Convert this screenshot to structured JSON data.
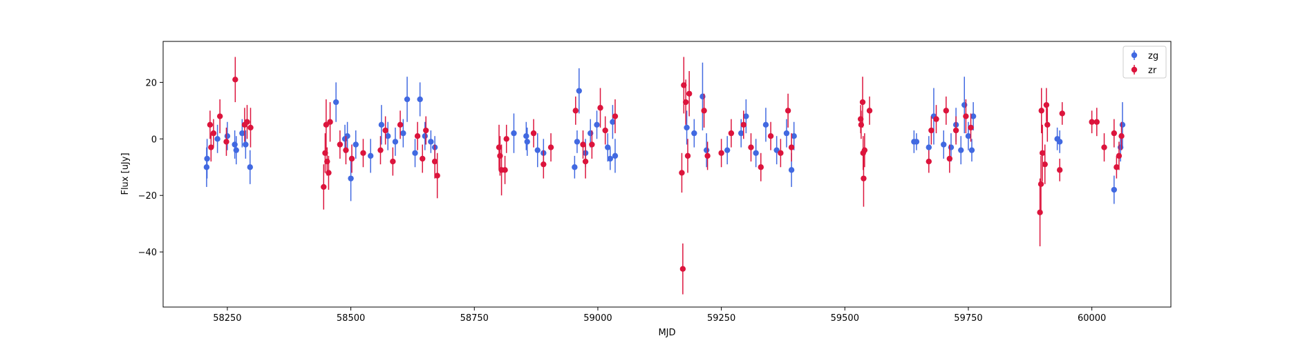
{
  "chart_data": {
    "type": "scatter",
    "title": "",
    "xlabel": "MJD",
    "ylabel": "Flux [uJy]",
    "xlim": [
      58120,
      60160
    ],
    "ylim": [
      -59.5,
      34.5
    ],
    "x_ticks": [
      58250,
      58500,
      58750,
      59000,
      59250,
      59500,
      59750,
      60000
    ],
    "x_tick_labels": [
      "58250",
      "58500",
      "58750",
      "59000",
      "59250",
      "59500",
      "59750",
      "60000"
    ],
    "y_ticks": [
      20,
      0,
      -20,
      -40
    ],
    "y_tick_labels": [
      "20",
      "0",
      "−20",
      "−40"
    ],
    "grid": false,
    "legend_position": "top-right",
    "error_bars": true,
    "series": [
      {
        "name": "zg",
        "color": "#4169e1",
        "points": [
          {
            "x": 58208,
            "y": -10,
            "err": 7
          },
          {
            "x": 58209,
            "y": -7,
            "err": 7
          },
          {
            "x": 58230,
            "y": 0,
            "err": 5
          },
          {
            "x": 58250,
            "y": 1,
            "err": 5
          },
          {
            "x": 58265,
            "y": -2,
            "err": 5
          },
          {
            "x": 58268,
            "y": -4,
            "err": 5
          },
          {
            "x": 58280,
            "y": 2,
            "err": 5
          },
          {
            "x": 58287,
            "y": -2,
            "err": 5
          },
          {
            "x": 58296,
            "y": -10,
            "err": 6
          },
          {
            "x": 58470,
            "y": 13,
            "err": 7
          },
          {
            "x": 58488,
            "y": 0,
            "err": 5
          },
          {
            "x": 58493,
            "y": 1,
            "err": 5
          },
          {
            "x": 58500,
            "y": -14,
            "err": 8
          },
          {
            "x": 58510,
            "y": -2,
            "err": 5
          },
          {
            "x": 58540,
            "y": -6,
            "err": 6
          },
          {
            "x": 58562,
            "y": 5,
            "err": 7
          },
          {
            "x": 58575,
            "y": 1,
            "err": 5
          },
          {
            "x": 58590,
            "y": -1,
            "err": 5
          },
          {
            "x": 58606,
            "y": 2,
            "err": 5
          },
          {
            "x": 58614,
            "y": 14,
            "err": 8
          },
          {
            "x": 58630,
            "y": -5,
            "err": 5
          },
          {
            "x": 58640,
            "y": 14,
            "err": 6
          },
          {
            "x": 58650,
            "y": 1,
            "err": 5
          },
          {
            "x": 58662,
            "y": -1,
            "err": 4
          },
          {
            "x": 58670,
            "y": -3,
            "err": 4
          },
          {
            "x": 58830,
            "y": 2,
            "err": 7
          },
          {
            "x": 58855,
            "y": 1,
            "err": 5
          },
          {
            "x": 58857,
            "y": -1,
            "err": 5
          },
          {
            "x": 58878,
            "y": -4,
            "err": 6
          },
          {
            "x": 58890,
            "y": -5,
            "err": 5
          },
          {
            "x": 58953,
            "y": -10,
            "err": 4
          },
          {
            "x": 58958,
            "y": -1,
            "err": 4
          },
          {
            "x": 58962,
            "y": 17,
            "err": 8
          },
          {
            "x": 58975,
            "y": -5,
            "err": 5
          },
          {
            "x": 58985,
            "y": 2,
            "err": 5
          },
          {
            "x": 58998,
            "y": 5,
            "err": 5
          },
          {
            "x": 59020,
            "y": -3,
            "err": 5
          },
          {
            "x": 59025,
            "y": -7,
            "err": 4
          },
          {
            "x": 59030,
            "y": 6,
            "err": 6
          },
          {
            "x": 59035,
            "y": -6,
            "err": 6
          },
          {
            "x": 59180,
            "y": 4,
            "err": 6
          },
          {
            "x": 59195,
            "y": 2,
            "err": 5
          },
          {
            "x": 59212,
            "y": 15,
            "err": 12
          },
          {
            "x": 59220,
            "y": -4,
            "err": 6
          },
          {
            "x": 59262,
            "y": -4,
            "err": 5
          },
          {
            "x": 59290,
            "y": 2,
            "err": 5
          },
          {
            "x": 59300,
            "y": 8,
            "err": 6
          },
          {
            "x": 59320,
            "y": -5,
            "err": 5
          },
          {
            "x": 59340,
            "y": 5,
            "err": 6
          },
          {
            "x": 59362,
            "y": -4,
            "err": 5
          },
          {
            "x": 59382,
            "y": 2,
            "err": 5
          },
          {
            "x": 59392,
            "y": -11,
            "err": 6
          },
          {
            "x": 59397,
            "y": 1,
            "err": 5
          },
          {
            "x": 59640,
            "y": -1,
            "err": 4
          },
          {
            "x": 59645,
            "y": -1,
            "err": 3
          },
          {
            "x": 59670,
            "y": -3,
            "err": 4
          },
          {
            "x": 59680,
            "y": 8,
            "err": 10
          },
          {
            "x": 59700,
            "y": -2,
            "err": 5
          },
          {
            "x": 59715,
            "y": -3,
            "err": 5
          },
          {
            "x": 59725,
            "y": 5,
            "err": 6
          },
          {
            "x": 59735,
            "y": -4,
            "err": 5
          },
          {
            "x": 59742,
            "y": 12,
            "err": 10
          },
          {
            "x": 59750,
            "y": 1,
            "err": 5
          },
          {
            "x": 59757,
            "y": -4,
            "err": 4
          },
          {
            "x": 59760,
            "y": 8,
            "err": 5
          },
          {
            "x": 59930,
            "y": 0,
            "err": 4
          },
          {
            "x": 59935,
            "y": -1,
            "err": 4
          },
          {
            "x": 60045,
            "y": -18,
            "err": 5
          },
          {
            "x": 60058,
            "y": -3,
            "err": 5
          },
          {
            "x": 60062,
            "y": 5,
            "err": 8
          }
        ]
      },
      {
        "name": "zr",
        "color": "#dc143c",
        "points": [
          {
            "x": 58215,
            "y": 5,
            "err": 5
          },
          {
            "x": 58217,
            "y": -3,
            "err": 5
          },
          {
            "x": 58222,
            "y": 2,
            "err": 5
          },
          {
            "x": 58235,
            "y": 8,
            "err": 6
          },
          {
            "x": 58248,
            "y": -1,
            "err": 5
          },
          {
            "x": 58266,
            "y": 21,
            "err": 8
          },
          {
            "x": 58285,
            "y": 5,
            "err": 6
          },
          {
            "x": 58290,
            "y": 6,
            "err": 6
          },
          {
            "x": 58297,
            "y": 4,
            "err": 7
          },
          {
            "x": 58445,
            "y": -17,
            "err": 8
          },
          {
            "x": 58448,
            "y": -5,
            "err": 7
          },
          {
            "x": 58450,
            "y": 5,
            "err": 9
          },
          {
            "x": 58452,
            "y": -8,
            "err": 5
          },
          {
            "x": 58455,
            "y": -12,
            "err": 6
          },
          {
            "x": 58458,
            "y": 6,
            "err": 7
          },
          {
            "x": 58478,
            "y": -2,
            "err": 5
          },
          {
            "x": 58490,
            "y": -4,
            "err": 5
          },
          {
            "x": 58502,
            "y": -7,
            "err": 5
          },
          {
            "x": 58525,
            "y": -5,
            "err": 5
          },
          {
            "x": 58560,
            "y": -4,
            "err": 5
          },
          {
            "x": 58570,
            "y": 3,
            "err": 5
          },
          {
            "x": 58585,
            "y": -8,
            "err": 5
          },
          {
            "x": 58600,
            "y": 5,
            "err": 5
          },
          {
            "x": 58635,
            "y": 1,
            "err": 5
          },
          {
            "x": 58645,
            "y": -7,
            "err": 5
          },
          {
            "x": 58652,
            "y": 3,
            "err": 5
          },
          {
            "x": 58670,
            "y": -8,
            "err": 6
          },
          {
            "x": 58675,
            "y": -13,
            "err": 8
          },
          {
            "x": 58800,
            "y": -3,
            "err": 8
          },
          {
            "x": 58802,
            "y": -6,
            "err": 7
          },
          {
            "x": 58805,
            "y": -11,
            "err": 9
          },
          {
            "x": 58812,
            "y": -11,
            "err": 5
          },
          {
            "x": 58815,
            "y": 0,
            "err": 5
          },
          {
            "x": 58870,
            "y": 2,
            "err": 5
          },
          {
            "x": 58890,
            "y": -9,
            "err": 5
          },
          {
            "x": 58905,
            "y": -3,
            "err": 5
          },
          {
            "x": 58955,
            "y": 10,
            "err": 5
          },
          {
            "x": 58970,
            "y": -2,
            "err": 5
          },
          {
            "x": 58975,
            "y": -8,
            "err": 6
          },
          {
            "x": 58988,
            "y": -2,
            "err": 5
          },
          {
            "x": 59005,
            "y": 11,
            "err": 7
          },
          {
            "x": 59015,
            "y": 3,
            "err": 5
          },
          {
            "x": 59035,
            "y": 8,
            "err": 6
          },
          {
            "x": 59170,
            "y": -12,
            "err": 7
          },
          {
            "x": 59172,
            "y": -46,
            "err": 9
          },
          {
            "x": 59174,
            "y": 19,
            "err": 10
          },
          {
            "x": 59178,
            "y": 13,
            "err": 8
          },
          {
            "x": 59182,
            "y": -6,
            "err": 6
          },
          {
            "x": 59185,
            "y": 16,
            "err": 8
          },
          {
            "x": 59215,
            "y": 10,
            "err": 6
          },
          {
            "x": 59222,
            "y": -6,
            "err": 5
          },
          {
            "x": 59250,
            "y": -5,
            "err": 5
          },
          {
            "x": 59270,
            "y": 2,
            "err": 5
          },
          {
            "x": 59295,
            "y": 5,
            "err": 5
          },
          {
            "x": 59310,
            "y": -3,
            "err": 5
          },
          {
            "x": 59330,
            "y": -10,
            "err": 5
          },
          {
            "x": 59350,
            "y": 1,
            "err": 5
          },
          {
            "x": 59370,
            "y": -5,
            "err": 5
          },
          {
            "x": 59385,
            "y": 10,
            "err": 6
          },
          {
            "x": 59392,
            "y": -3,
            "err": 5
          },
          {
            "x": 59532,
            "y": 7,
            "err": 5
          },
          {
            "x": 59533,
            "y": 5,
            "err": 5
          },
          {
            "x": 59536,
            "y": 13,
            "err": 9
          },
          {
            "x": 59537,
            "y": -5,
            "err": 6
          },
          {
            "x": 59538,
            "y": -14,
            "err": 10
          },
          {
            "x": 59540,
            "y": -4,
            "err": 6
          },
          {
            "x": 59550,
            "y": 10,
            "err": 5
          },
          {
            "x": 59670,
            "y": -8,
            "err": 4
          },
          {
            "x": 59675,
            "y": 3,
            "err": 5
          },
          {
            "x": 59685,
            "y": 7,
            "err": 5
          },
          {
            "x": 59705,
            "y": 10,
            "err": 5
          },
          {
            "x": 59712,
            "y": -7,
            "err": 5
          },
          {
            "x": 59725,
            "y": 3,
            "err": 5
          },
          {
            "x": 59745,
            "y": 8,
            "err": 6
          },
          {
            "x": 59755,
            "y": 4,
            "err": 5
          },
          {
            "x": 59895,
            "y": -26,
            "err": 12
          },
          {
            "x": 59897,
            "y": -16,
            "err": 10
          },
          {
            "x": 59898,
            "y": 10,
            "err": 8
          },
          {
            "x": 59900,
            "y": -5,
            "err": 10
          },
          {
            "x": 59905,
            "y": -9,
            "err": 7
          },
          {
            "x": 59908,
            "y": 12,
            "err": 6
          },
          {
            "x": 59910,
            "y": 5,
            "err": 6
          },
          {
            "x": 59935,
            "y": -11,
            "err": 4
          },
          {
            "x": 59940,
            "y": 9,
            "err": 4
          },
          {
            "x": 60000,
            "y": 6,
            "err": 4
          },
          {
            "x": 60010,
            "y": 6,
            "err": 5
          },
          {
            "x": 60025,
            "y": -3,
            "err": 5
          },
          {
            "x": 60045,
            "y": 2,
            "err": 5
          },
          {
            "x": 60050,
            "y": -10,
            "err": 4
          },
          {
            "x": 60055,
            "y": -6,
            "err": 5
          },
          {
            "x": 60060,
            "y": 1,
            "err": 5
          }
        ]
      }
    ]
  }
}
